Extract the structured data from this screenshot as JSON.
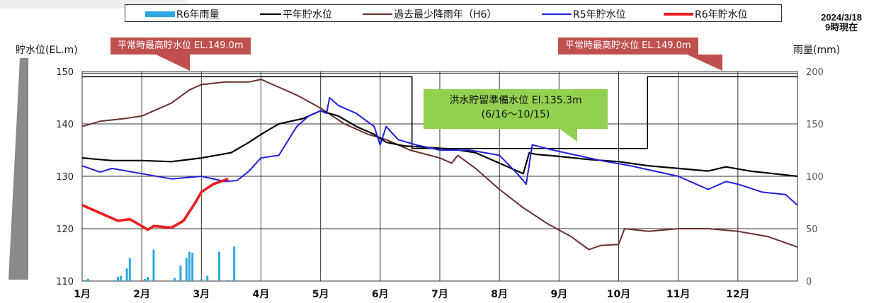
{
  "timestamp": {
    "date": "2024/3/18",
    "time": "9時現在"
  },
  "legend": [
    {
      "name": "R6年雨量",
      "color": "#2ea8e0",
      "kind": "bar"
    },
    {
      "name": "平年貯水位",
      "color": "#000000",
      "kind": "line"
    },
    {
      "name": "過去最少降雨年（H6）",
      "color": "#6b2e2e",
      "kind": "line"
    },
    {
      "name": "R5年貯水位",
      "color": "#1f1fe0",
      "kind": "line"
    },
    {
      "name": "R6年貯水位",
      "color": "#ee1c1c",
      "kind": "line"
    }
  ],
  "annotations": {
    "normal_max_left": "平常時最高貯水位 EL.149.0m",
    "normal_max_right": "平常時最高貯水位 EL.149.0m",
    "flood_line1": "洪水貯留準備水位 El.135.3m",
    "flood_line2": "(6/16～10/15)"
  },
  "chart_data": {
    "type": "line",
    "title": "",
    "ylabel": "貯水位(EL.m)",
    "y2label": "雨量(mm)",
    "xlabel": "",
    "ylim": [
      110,
      150
    ],
    "y2lim": [
      0,
      200
    ],
    "yticks": [
      110,
      120,
      130,
      140,
      150
    ],
    "y2ticks": [
      0,
      50,
      100,
      150,
      200
    ],
    "xlim_month": [
      1,
      13
    ],
    "month_labels": [
      "1月",
      "2月",
      "3月",
      "4月",
      "5月",
      "6月",
      "7月",
      "8月",
      "9月",
      "10月",
      "11月",
      "12月"
    ],
    "grid": true,
    "legend_position": "top",
    "normal_max_level": 149.0,
    "flood_level": 135.3,
    "series": [
      {
        "name": "平年貯水位",
        "color": "#000000",
        "x": [
          1.0,
          1.5,
          2.0,
          2.5,
          3.0,
          3.5,
          3.8,
          4.0,
          4.3,
          4.7,
          5.0,
          5.3,
          5.6,
          5.9,
          6.1,
          6.4,
          6.8,
          7.2,
          7.6,
          8.0,
          8.4,
          8.5,
          8.6,
          9.0,
          9.5,
          10.0,
          10.5,
          11.0,
          11.5,
          11.8,
          12.2,
          12.6,
          13.0
        ],
        "y": [
          133.5,
          133.0,
          133.0,
          132.8,
          133.5,
          134.5,
          136.5,
          138.0,
          140.0,
          141.0,
          142.5,
          141.5,
          139.5,
          138.0,
          136.5,
          135.8,
          135.5,
          135.2,
          134.5,
          132.5,
          130.5,
          134.5,
          134.2,
          133.8,
          133.2,
          132.8,
          132.0,
          131.5,
          131.0,
          131.8,
          131.0,
          130.5,
          130.0
        ]
      },
      {
        "name": "過去最少降雨年（H6）",
        "color": "#6b2e2e",
        "x": [
          1.0,
          1.3,
          1.7,
          2.0,
          2.5,
          2.8,
          3.0,
          3.4,
          3.8,
          4.0,
          4.2,
          4.6,
          5.0,
          5.4,
          5.8,
          6.1,
          6.5,
          7.0,
          7.2,
          7.3,
          7.6,
          8.0,
          8.4,
          8.8,
          9.2,
          9.5,
          9.7,
          10.0,
          10.1,
          10.5,
          11.0,
          11.5,
          12.0,
          12.5,
          13.0
        ],
        "y": [
          139.5,
          140.5,
          141.0,
          141.5,
          144.0,
          146.5,
          147.5,
          148.0,
          148.0,
          148.5,
          147.5,
          145.5,
          143.0,
          140.0,
          138.0,
          137.0,
          135.0,
          133.5,
          132.5,
          134.0,
          131.5,
          127.5,
          124.0,
          121.0,
          118.5,
          116.0,
          116.8,
          117.0,
          120.0,
          119.5,
          120.0,
          120.0,
          119.5,
          118.5,
          116.5
        ]
      },
      {
        "name": "R5年貯水位",
        "color": "#1f1fe0",
        "x": [
          1.0,
          1.3,
          1.5,
          2.0,
          2.5,
          2.8,
          3.0,
          3.4,
          3.6,
          3.8,
          4.0,
          4.3,
          4.6,
          4.8,
          5.0,
          5.1,
          5.15,
          5.3,
          5.6,
          5.9,
          6.0,
          6.1,
          6.3,
          6.6,
          7.0,
          7.5,
          8.0,
          8.3,
          8.45,
          8.55,
          8.9,
          9.3,
          9.7,
          10.2,
          10.6,
          11.0,
          11.3,
          11.5,
          11.8,
          12.0,
          12.4,
          12.8,
          13.0
        ],
        "y": [
          132.0,
          130.8,
          131.5,
          130.5,
          129.5,
          129.8,
          130.0,
          129.0,
          129.2,
          131.0,
          133.5,
          134.0,
          139.5,
          141.5,
          142.5,
          142.0,
          145.0,
          143.5,
          142.0,
          139.5,
          136.0,
          139.5,
          137.0,
          136.0,
          135.0,
          135.0,
          134.0,
          130.5,
          128.5,
          136.0,
          135.0,
          134.0,
          133.0,
          132.0,
          131.0,
          130.0,
          128.5,
          127.5,
          129.0,
          128.5,
          127.0,
          126.5,
          124.5
        ]
      },
      {
        "name": "R6年貯水位",
        "color": "#ee1c1c",
        "x": [
          1.0,
          1.3,
          1.6,
          1.8,
          2.0,
          2.1,
          2.2,
          2.5,
          2.7,
          2.9,
          3.0,
          3.2,
          3.45
        ],
        "y": [
          124.5,
          123.0,
          121.5,
          121.8,
          120.5,
          119.8,
          120.5,
          120.2,
          121.5,
          125.0,
          127.0,
          128.5,
          129.5
        ]
      },
      {
        "name": "R6年雨量",
        "color": "#2ea8e0",
        "type": "bar",
        "x": [
          1.05,
          1.1,
          1.55,
          1.6,
          1.65,
          1.75,
          1.8,
          2.05,
          2.1,
          2.2,
          2.55,
          2.65,
          2.75,
          2.8,
          2.85,
          3.0,
          3.1,
          3.3,
          3.45,
          3.55
        ],
        "y": [
          1,
          2,
          1,
          4,
          5,
          12,
          22,
          2,
          4,
          30,
          3,
          15,
          22,
          28,
          27,
          2,
          5,
          28,
          1,
          33
        ]
      }
    ]
  }
}
